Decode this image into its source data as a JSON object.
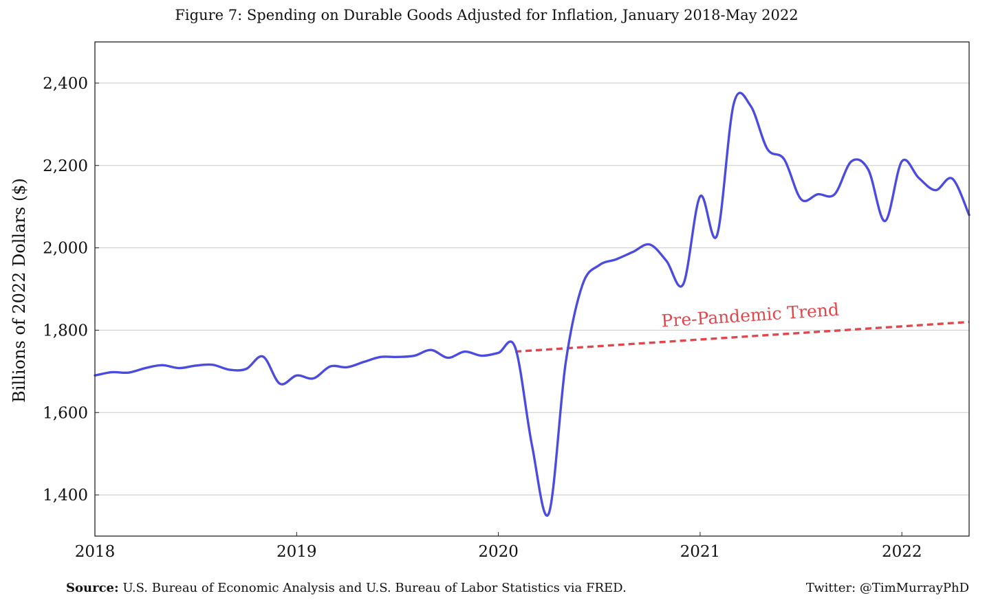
{
  "title": "Figure 7: Spending on Durable Goods Adjusted for Inflation, January 2018-May 2022",
  "footer": {
    "source_label": "Source:",
    "source_text": "U.S. Bureau of Economic Analysis and U.S. Bureau of Labor Statistics via FRED.",
    "credit": "Twitter: @TimMurrayPhD"
  },
  "chart_data": {
    "type": "line",
    "title": "Figure 7: Spending on Durable Goods Adjusted for Inflation, January 2018-May 2022",
    "xlabel": "",
    "ylabel": "Billions of 2022 Dollars ($)",
    "x": [
      "2018-01",
      "2018-02",
      "2018-03",
      "2018-04",
      "2018-05",
      "2018-06",
      "2018-07",
      "2018-08",
      "2018-09",
      "2018-10",
      "2018-11",
      "2018-12",
      "2019-01",
      "2019-02",
      "2019-03",
      "2019-04",
      "2019-05",
      "2019-06",
      "2019-07",
      "2019-08",
      "2019-09",
      "2019-10",
      "2019-11",
      "2019-12",
      "2020-01",
      "2020-02",
      "2020-03",
      "2020-04",
      "2020-05",
      "2020-06",
      "2020-07",
      "2020-08",
      "2020-09",
      "2020-10",
      "2020-11",
      "2020-12",
      "2021-01",
      "2021-02",
      "2021-03",
      "2021-04",
      "2021-05",
      "2021-06",
      "2021-07",
      "2021-08",
      "2021-09",
      "2021-10",
      "2021-11",
      "2021-12",
      "2022-01",
      "2022-02",
      "2022-03",
      "2022-04",
      "2022-05"
    ],
    "x_ticks": [
      "2018",
      "2019",
      "2020",
      "2021",
      "2022"
    ],
    "y_ticks": [
      "1,400",
      "1,600",
      "1,800",
      "2,000",
      "2,200",
      "2,400"
    ],
    "y_tick_values": [
      1400,
      1600,
      1800,
      2000,
      2200,
      2400
    ],
    "ylim": [
      1300,
      2500
    ],
    "grid": "horizontal",
    "series": [
      {
        "color": "#4b4bdf",
        "values": [
          1690,
          1698,
          1697,
          1708,
          1715,
          1708,
          1714,
          1716,
          1704,
          1706,
          1736,
          1670,
          1690,
          1683,
          1712,
          1710,
          1723,
          1735,
          1735,
          1738,
          1752,
          1733,
          1748,
          1738,
          1745,
          1758,
          1520,
          1355,
          1720,
          1910,
          1958,
          1972,
          1990,
          2008,
          1968,
          1912,
          2125,
          2030,
          2350,
          2345,
          2240,
          2215,
          2118,
          2130,
          2130,
          2210,
          2190,
          2065,
          2210,
          2170,
          2140,
          2168,
          2080
        ]
      }
    ],
    "trend": {
      "label": "Pre-Pandemic Trend",
      "color": "#e0474c",
      "style": "dashed",
      "start": {
        "x": "2020-02",
        "y": 1748
      },
      "end": {
        "x": "2022-05",
        "y": 1820
      }
    }
  }
}
